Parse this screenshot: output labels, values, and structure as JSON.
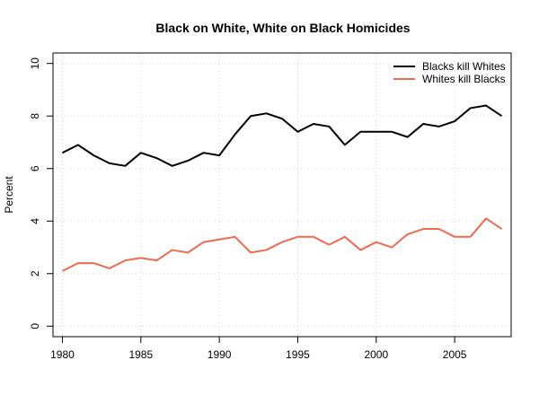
{
  "chart_data": {
    "type": "line",
    "title": "Black on White, White on Black Homicides",
    "xlabel": "",
    "ylabel": "Percent",
    "xlim": [
      1979.4,
      2008.6
    ],
    "ylim": [
      -0.4,
      10.4
    ],
    "xticks": [
      1980,
      1985,
      1990,
      1995,
      2000,
      2005
    ],
    "yticks": [
      0,
      2,
      4,
      6,
      8,
      10
    ],
    "grid": true,
    "legend_position": "top-right",
    "x": [
      1980,
      1981,
      1982,
      1983,
      1984,
      1985,
      1986,
      1987,
      1988,
      1989,
      1990,
      1991,
      1992,
      1993,
      1994,
      1995,
      1996,
      1997,
      1998,
      1999,
      2000,
      2001,
      2002,
      2003,
      2004,
      2005,
      2006,
      2007,
      2008
    ],
    "series": [
      {
        "name": "Blacks kill Whites",
        "color": "#000000",
        "values": [
          6.6,
          6.9,
          6.5,
          6.2,
          6.1,
          6.6,
          6.4,
          6.1,
          6.3,
          6.6,
          6.5,
          7.3,
          8.0,
          8.1,
          7.9,
          7.4,
          7.7,
          7.6,
          6.9,
          7.4,
          7.4,
          7.4,
          7.2,
          7.7,
          7.6,
          7.8,
          8.3,
          8.4,
          8.0
        ]
      },
      {
        "name": "Whites kill Blacks",
        "color": "#ee6a50",
        "values": [
          2.1,
          2.4,
          2.4,
          2.2,
          2.5,
          2.6,
          2.5,
          2.9,
          2.8,
          3.2,
          3.3,
          3.4,
          2.8,
          2.9,
          3.2,
          3.4,
          3.4,
          3.1,
          3.4,
          2.9,
          3.2,
          3.0,
          3.5,
          3.7,
          3.7,
          3.4,
          3.4,
          4.1,
          3.7
        ]
      }
    ]
  }
}
